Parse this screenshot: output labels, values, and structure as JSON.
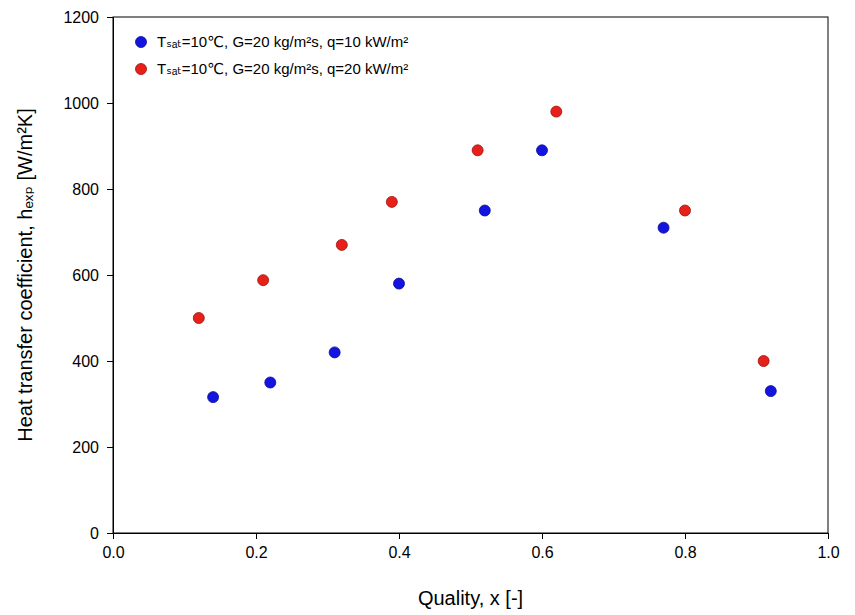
{
  "chart_data": {
    "type": "scatter",
    "x_label": "Quality, x [-]",
    "y_label": "Heat transfer coefficient, hₑₓₚ [W/m²K]",
    "xlim": [
      0,
      1
    ],
    "xticks": [
      {
        "value": 0,
        "label": "0.0"
      },
      0.2,
      0.4,
      0.6,
      0.8,
      {
        "value": 1,
        "label": "1.0"
      }
    ],
    "ylim": [
      0,
      1200
    ],
    "yticks": [
      0,
      200,
      400,
      600,
      800,
      1000,
      1200
    ],
    "grid": false,
    "legend": "upper left",
    "marker": "circle",
    "series": [
      {
        "name": "Tₛₐₜ=10℃, G=20 kg/m²s, q=10 kW/m²",
        "color": "#1414e0",
        "x": [
          0.14,
          0.22,
          0.31,
          0.4,
          0.52,
          0.6,
          0.77,
          0.92
        ],
        "values": [
          316,
          350,
          420,
          580,
          750,
          890,
          710,
          330
        ]
      },
      {
        "name": "Tₛₐₜ=10℃, G=20 kg/m²s, q=20 kW/m²",
        "color": "#e8201a",
        "x": [
          0.12,
          0.21,
          0.32,
          0.39,
          0.51,
          0.62,
          0.8,
          0.91
        ],
        "values": [
          500,
          588,
          670,
          770,
          890,
          980,
          750,
          400
        ]
      }
    ]
  }
}
